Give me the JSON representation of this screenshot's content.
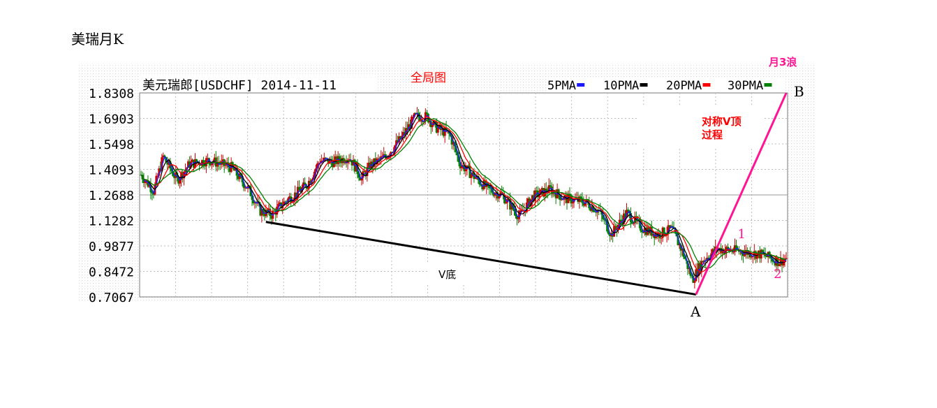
{
  "page_title": "美瑞月K",
  "chart_data": {
    "type": "candlestick",
    "title": "美元瑞郎[USDCHF] 2014-11-11",
    "subtitle_label": "全局图",
    "legend": [
      {
        "name": "5PMA",
        "color": "#1a1aff"
      },
      {
        "name": "10PMA",
        "color": "#000000"
      },
      {
        "name": "20PMA",
        "color": "#ff0000"
      },
      {
        "name": "30PMA",
        "color": "#008000"
      }
    ],
    "yticks": [
      "1.8308",
      "1.6903",
      "1.5498",
      "1.4093",
      "1.2688",
      "1.1282",
      "0.9877",
      "0.8472",
      "0.7067"
    ],
    "ylim": [
      0.7067,
      1.8308
    ],
    "grid": true,
    "colors": {
      "up": "#cc0000",
      "down": "#008000",
      "magenta": "#ff1493",
      "frame": "#777777"
    },
    "anchors": [
      {
        "t": 0,
        "v": 1.38
      },
      {
        "t": 18,
        "v": 1.29
      },
      {
        "t": 32,
        "v": 1.48
      },
      {
        "t": 52,
        "v": 1.35
      },
      {
        "t": 70,
        "v": 1.44
      },
      {
        "t": 98,
        "v": 1.46
      },
      {
        "t": 130,
        "v": 1.42
      },
      {
        "t": 155,
        "v": 1.3
      },
      {
        "t": 172,
        "v": 1.18
      },
      {
        "t": 188,
        "v": 1.16
      },
      {
        "t": 210,
        "v": 1.24
      },
      {
        "t": 225,
        "v": 1.28
      },
      {
        "t": 240,
        "v": 1.33
      },
      {
        "t": 258,
        "v": 1.46
      },
      {
        "t": 278,
        "v": 1.45
      },
      {
        "t": 300,
        "v": 1.48
      },
      {
        "t": 318,
        "v": 1.36
      },
      {
        "t": 330,
        "v": 1.43
      },
      {
        "t": 352,
        "v": 1.48
      },
      {
        "t": 375,
        "v": 1.58
      },
      {
        "t": 395,
        "v": 1.7
      },
      {
        "t": 412,
        "v": 1.7
      },
      {
        "t": 425,
        "v": 1.64
      },
      {
        "t": 445,
        "v": 1.6
      },
      {
        "t": 460,
        "v": 1.44
      },
      {
        "t": 480,
        "v": 1.37
      },
      {
        "t": 500,
        "v": 1.3
      },
      {
        "t": 520,
        "v": 1.27
      },
      {
        "t": 545,
        "v": 1.15
      },
      {
        "t": 565,
        "v": 1.26
      },
      {
        "t": 590,
        "v": 1.3
      },
      {
        "t": 610,
        "v": 1.25
      },
      {
        "t": 640,
        "v": 1.23
      },
      {
        "t": 660,
        "v": 1.18
      },
      {
        "t": 678,
        "v": 1.05
      },
      {
        "t": 700,
        "v": 1.17
      },
      {
        "t": 720,
        "v": 1.09
      },
      {
        "t": 745,
        "v": 1.05
      },
      {
        "t": 765,
        "v": 1.08
      },
      {
        "t": 780,
        "v": 0.96
      },
      {
        "t": 795,
        "v": 0.8
      },
      {
        "t": 810,
        "v": 0.91
      },
      {
        "t": 830,
        "v": 0.97
      },
      {
        "t": 860,
        "v": 0.96
      },
      {
        "t": 895,
        "v": 0.94
      },
      {
        "t": 920,
        "v": 0.9
      },
      {
        "t": 930,
        "v": 0.92
      }
    ],
    "annotations": {
      "v_bottom": "V底",
      "symmetric_v_top": "对称V顶",
      "process": "过程",
      "wave3": "月3浪",
      "label_A": "A",
      "label_B": "B",
      "wave1": "1",
      "wave2": "2"
    },
    "trendline_v": {
      "start_t": 180,
      "start_v": 1.12,
      "end_t": 800,
      "end_v": 0.72
    },
    "trendline_wave": {
      "start_t": 800,
      "start_v": 0.72,
      "end_t": 930,
      "end_v": 1.83
    },
    "wave_label_points": {
      "wave1": {
        "t": 860,
        "v": 1.03
      },
      "wave2": {
        "t": 912,
        "v": 0.81
      }
    }
  }
}
